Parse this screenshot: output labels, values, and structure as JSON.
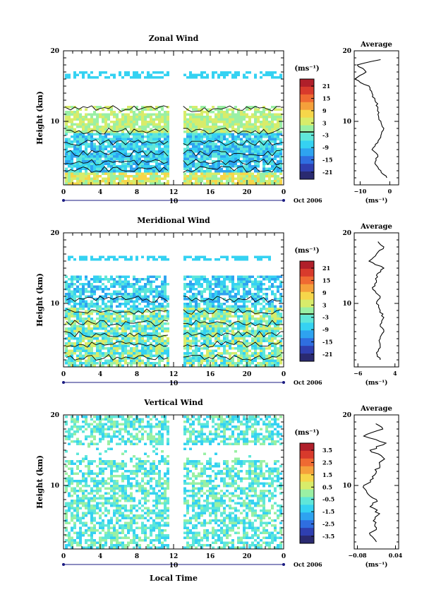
{
  "colors": {
    "scale": [
      "#2a2a70",
      "#2f3fb0",
      "#2f6ee0",
      "#2ea3f0",
      "#35d2f2",
      "#5fe7d9",
      "#9af0a4",
      "#d8ec6a",
      "#f6d64a",
      "#f5a03b",
      "#ef6a32",
      "#d83a2c",
      "#b01f2a"
    ]
  },
  "x_axis": {
    "ticks": [
      "0",
      "4",
      "8",
      "12",
      "16",
      "20",
      "0"
    ],
    "date_label": "10",
    "date_suffix": "Oct 2006",
    "xlabel": "Local Time"
  },
  "colorbar_unit_label": "(ms⁻¹)",
  "chart_data": [
    {
      "type": "heatmap",
      "title": "Zonal Wind",
      "ylabel": "Height (km)",
      "yticks": [
        "20",
        "10"
      ],
      "ylim": [
        1,
        20
      ],
      "xlim": [
        0,
        24
      ],
      "colorbar_ticks": [
        "21",
        "15",
        "9",
        "3",
        "-3",
        "-9",
        "-15",
        "-21"
      ],
      "profile": {
        "title": "Average",
        "xticks": [
          "−10",
          "0"
        ],
        "xlabel": "(ms⁻¹)",
        "yticks": [
          "20",
          "10"
        ],
        "xlim": [
          -12,
          3
        ],
        "heights": [
          2,
          3,
          4,
          5,
          6,
          7,
          8,
          9,
          10,
          11,
          12,
          13,
          14,
          15,
          16,
          17,
          18,
          19
        ],
        "values": [
          -1,
          -3,
          -5,
          -4,
          -6,
          -4,
          -3,
          -2,
          -3,
          -4,
          -4,
          -5,
          -6,
          -7,
          -12,
          -8,
          -11,
          -1
        ]
      }
    },
    {
      "type": "heatmap",
      "title": "Meridional Wind",
      "ylabel": "Height (km)",
      "yticks": [
        "20",
        "10"
      ],
      "ylim": [
        1,
        20
      ],
      "xlim": [
        0,
        24
      ],
      "colorbar_ticks": [
        "21",
        "15",
        "9",
        "3",
        "-3",
        "-9",
        "-15",
        "-21"
      ],
      "profile": {
        "title": "Average",
        "xticks": [
          "−6",
          "4"
        ],
        "xlabel": "(ms⁻¹)",
        "yticks": [
          "20",
          "10"
        ],
        "xlim": [
          -7,
          5
        ],
        "heights": [
          2,
          3,
          4,
          5,
          6,
          7,
          8,
          9,
          10,
          11,
          12,
          13,
          14,
          15,
          16,
          17,
          18,
          19
        ],
        "values": [
          0,
          -1,
          0,
          0,
          1,
          0,
          1,
          0,
          -1,
          0,
          -2,
          -1,
          -1,
          1,
          -3,
          -1,
          1,
          -1
        ]
      }
    },
    {
      "type": "heatmap",
      "title": "Vertical Wind",
      "ylabel": "Height (km)",
      "yticks": [
        "20",
        "10"
      ],
      "ylim": [
        1,
        20
      ],
      "xlim": [
        0,
        24
      ],
      "colorbar_ticks": [
        "3.5",
        "2.5",
        "1.5",
        "0.5",
        "-0.5",
        "-1.5",
        "-2.5",
        "-3.5"
      ],
      "profile": {
        "title": "Average",
        "xticks": [
          "−0.08",
          "0.04"
        ],
        "xlabel": "(ms⁻¹)",
        "yticks": [
          "20",
          "10"
        ],
        "xlim": [
          -0.09,
          0.05
        ],
        "heights": [
          2,
          3,
          4,
          5,
          6,
          7,
          8,
          9,
          10,
          11,
          12,
          13,
          14,
          15,
          16,
          17,
          18,
          19
        ],
        "values": [
          -0.02,
          -0.04,
          -0.02,
          -0.03,
          -0.01,
          -0.04,
          -0.02,
          -0.05,
          -0.06,
          -0.03,
          -0.02,
          -0.01,
          0.0,
          -0.04,
          0.01,
          -0.06,
          0.0,
          -0.02
        ]
      }
    }
  ]
}
